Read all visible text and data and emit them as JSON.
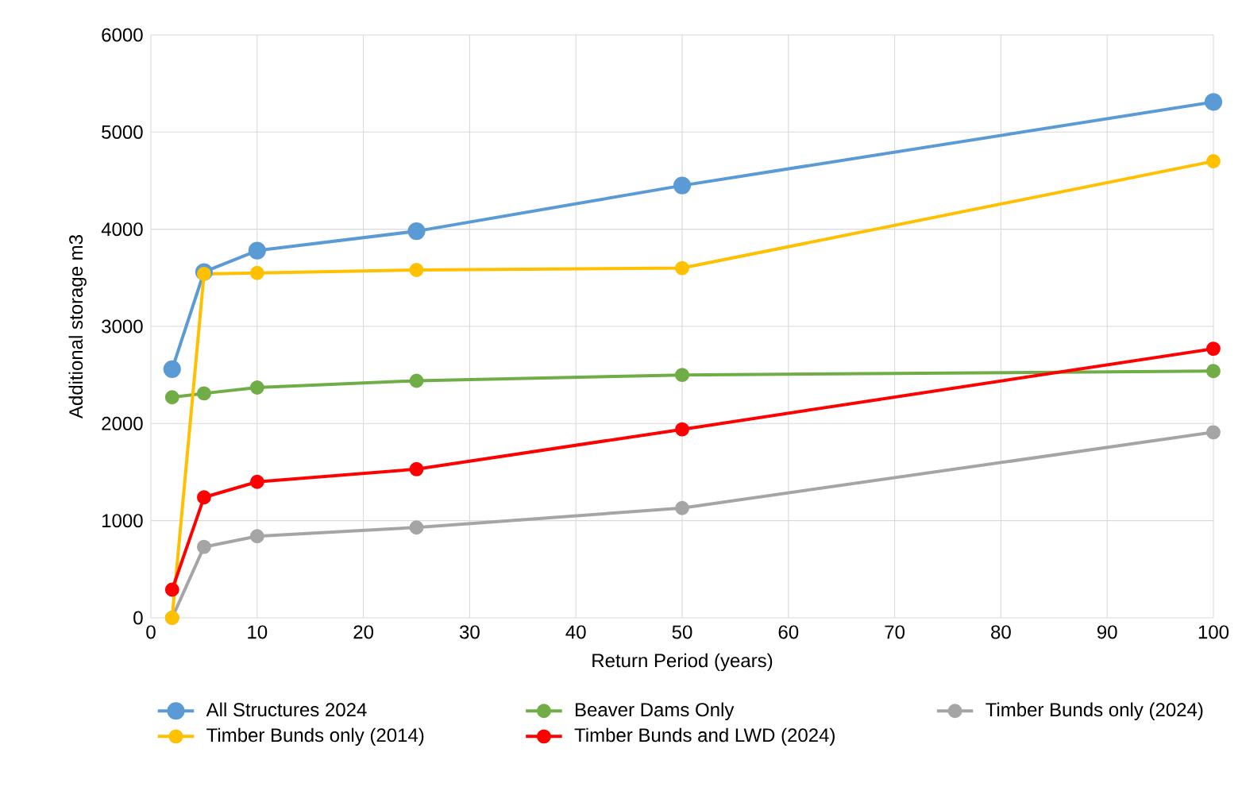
{
  "chart_data": {
    "type": "line",
    "xlabel": "Return Period (years)",
    "ylabel": "Additional storage m3",
    "xlim": [
      0,
      100
    ],
    "ylim": [
      0,
      6000
    ],
    "xticks": [
      0,
      10,
      20,
      30,
      40,
      50,
      60,
      70,
      80,
      90,
      100
    ],
    "yticks": [
      0,
      1000,
      2000,
      3000,
      4000,
      5000,
      6000
    ],
    "grid": true,
    "legend": "bottom",
    "marker": "circle",
    "line_style": "solid",
    "x": [
      2,
      5,
      10,
      25,
      50,
      100
    ],
    "series": [
      {
        "name": "All Structures 2024",
        "color": "#5b9bd5",
        "values": [
          2560,
          3560,
          3780,
          3980,
          4450,
          5310
        ]
      },
      {
        "name": "Beaver Dams Only",
        "color": "#70ad47",
        "values": [
          2270,
          2310,
          2370,
          2440,
          2500,
          2540
        ]
      },
      {
        "name": "Timber Bunds only (2024)",
        "color": "#a5a5a5",
        "values": [
          0,
          730,
          840,
          930,
          1130,
          1910
        ]
      },
      {
        "name": "Timber Bunds only (2014)",
        "color": "#ffc000",
        "values": [
          0,
          3540,
          3550,
          3580,
          3600,
          4700
        ]
      },
      {
        "name": "Timber Bunds and LWD (2024)",
        "color": "#ff0000",
        "values": [
          290,
          1240,
          1400,
          1530,
          1940,
          2770
        ]
      }
    ]
  }
}
